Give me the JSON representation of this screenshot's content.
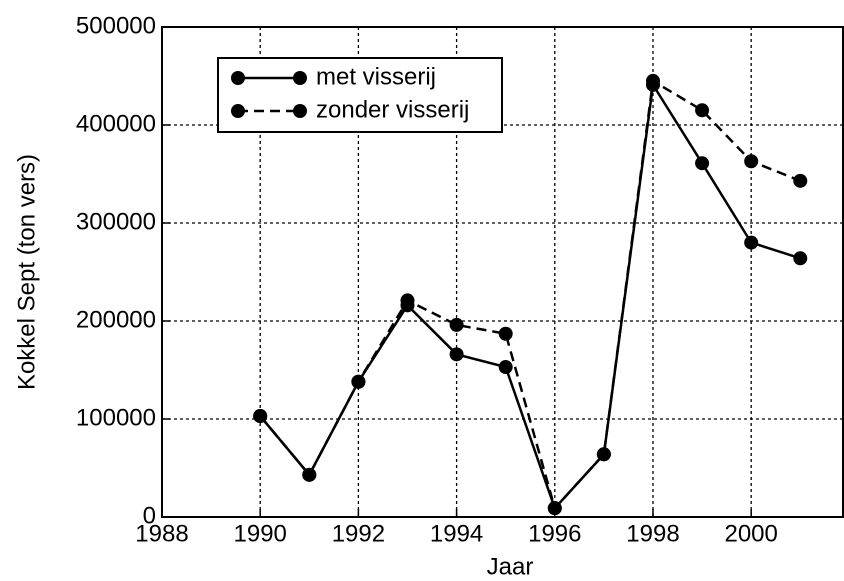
{
  "chart_data": {
    "type": "line",
    "x_label": "Jaar",
    "y_label": "Kokkel Sept (ton vers)",
    "x": [
      1990,
      1991,
      1992,
      1993,
      1994,
      1995,
      1996,
      1997,
      1998,
      1999,
      2000,
      2001
    ],
    "series": [
      {
        "name": "met visserij",
        "color": "#000000",
        "linestyle": "solid",
        "values": [
          103000,
          43000,
          138000,
          216000,
          166000,
          153000,
          9000,
          64000,
          441000,
          361000,
          280000,
          264000
        ]
      },
      {
        "name": "zonder visserij",
        "color": "#000000",
        "linestyle": "dashed",
        "values": [
          103000,
          43000,
          138000,
          221000,
          196000,
          187000,
          9000,
          64000,
          445000,
          415000,
          363000,
          343000
        ]
      }
    ],
    "xlim": [
      1988,
      2001.87
    ],
    "ylim": [
      0,
      500000
    ],
    "xticks": [
      1988,
      1990,
      1992,
      1994,
      1996,
      1998,
      2000
    ],
    "yticks": [
      0,
      100000,
      200000,
      300000,
      400000,
      500000
    ],
    "grid": true,
    "legend": "upper left"
  }
}
